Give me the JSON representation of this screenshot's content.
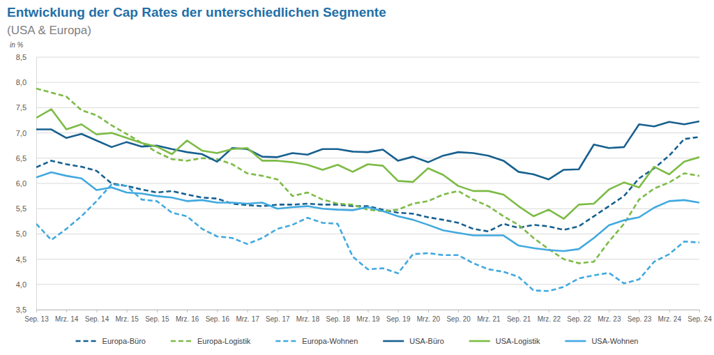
{
  "chart_data": {
    "type": "line",
    "title": "Entwicklung der Cap Rates der unterschiedlichen Segmente",
    "subtitle": "(USA & Europa)",
    "y_label": "in %",
    "categories": [
      "Sep. 13",
      null,
      "Mrz. 14",
      null,
      "Sep. 14",
      null,
      "Mrz. 15",
      null,
      "Sep. 15",
      null,
      "Mrz. 16",
      null,
      "Sep. 16",
      null,
      "Mrz. 17",
      null,
      "Sep. 17",
      null,
      "Mrz. 18",
      null,
      "Sep. 18",
      null,
      "Mrz. 19",
      null,
      "Sep. 19",
      null,
      "Mrz. 20",
      null,
      "Sep. 20",
      null,
      "Mrz. 21",
      null,
      "Sep. 21",
      null,
      "Mrz. 22",
      null,
      "Sep. 22",
      null,
      "Mrz. 23",
      null,
      "Sep. 23",
      null,
      "Mrz. 24",
      null,
      "Sep. 24"
    ],
    "ylim": [
      3.5,
      8.5
    ],
    "yticks": [
      {
        "value": 3.5,
        "label": "3,5"
      },
      {
        "value": 4,
        "label": "4,0"
      },
      {
        "value": 4.5,
        "label": "4,5"
      },
      {
        "value": 5,
        "label": "5,0"
      },
      {
        "value": 5.5,
        "label": "5,5"
      },
      {
        "value": 6,
        "label": "6,0"
      },
      {
        "value": 6.5,
        "label": "6,5"
      },
      {
        "value": 7,
        "label": "7,0"
      },
      {
        "value": 7.5,
        "label": "7,5"
      },
      {
        "value": 8,
        "label": "8,0"
      },
      {
        "value": 8.5,
        "label": "8,5"
      }
    ],
    "grid": true,
    "legend": "bottom",
    "series": [
      {
        "name": "Europa-Büro",
        "color": "#17608f",
        "line_style": "dashed",
        "values": [
          6.32,
          6.45,
          6.38,
          6.33,
          6.25,
          6.0,
          5.95,
          5.88,
          5.82,
          5.85,
          5.78,
          5.72,
          5.7,
          5.6,
          5.57,
          5.55,
          5.58,
          5.58,
          5.6,
          5.58,
          5.58,
          5.55,
          5.55,
          5.48,
          5.42,
          5.4,
          5.33,
          5.28,
          5.22,
          5.1,
          5.05,
          5.2,
          5.12,
          5.18,
          5.15,
          5.08,
          5.15,
          5.35,
          5.55,
          5.75,
          6.1,
          6.3,
          6.55,
          6.88,
          6.92
        ]
      },
      {
        "name": "Europa-Logistik",
        "color": "#7cbb45",
        "line_style": "dashed",
        "values": [
          7.88,
          7.8,
          7.72,
          7.45,
          7.35,
          7.15,
          6.98,
          6.8,
          6.62,
          6.48,
          6.45,
          6.5,
          6.48,
          6.38,
          6.2,
          6.15,
          6.08,
          5.75,
          5.82,
          5.68,
          5.6,
          5.58,
          5.48,
          5.45,
          5.48,
          5.6,
          5.65,
          5.78,
          5.85,
          5.68,
          5.55,
          5.35,
          5.18,
          4.92,
          4.7,
          4.5,
          4.42,
          4.45,
          4.85,
          5.2,
          5.68,
          5.9,
          6.02,
          6.2,
          6.15
        ]
      },
      {
        "name": "Europa-Wohnen",
        "color": "#41a9df",
        "line_style": "dashed",
        "values": [
          5.2,
          4.88,
          5.1,
          5.35,
          5.65,
          5.98,
          5.95,
          5.68,
          5.65,
          5.42,
          5.35,
          5.1,
          4.95,
          4.92,
          4.8,
          4.92,
          5.1,
          5.18,
          5.32,
          5.22,
          5.2,
          4.55,
          4.3,
          4.32,
          4.22,
          4.6,
          4.62,
          4.58,
          4.58,
          4.42,
          4.3,
          4.25,
          4.15,
          3.88,
          3.87,
          3.95,
          4.12,
          4.18,
          4.23,
          4.02,
          4.1,
          4.45,
          4.6,
          4.85,
          4.83
        ]
      },
      {
        "name": "USA-Büro",
        "color": "#17608f",
        "line_style": "solid",
        "values": [
          7.07,
          7.07,
          6.9,
          6.98,
          6.85,
          6.72,
          6.82,
          6.73,
          6.75,
          6.68,
          6.62,
          6.58,
          6.43,
          6.7,
          6.68,
          6.53,
          6.52,
          6.6,
          6.57,
          6.68,
          6.68,
          6.63,
          6.62,
          6.67,
          6.45,
          6.53,
          6.42,
          6.55,
          6.62,
          6.6,
          6.55,
          6.45,
          6.23,
          6.18,
          6.08,
          6.27,
          6.28,
          6.77,
          6.7,
          6.72,
          7.17,
          7.13,
          7.22,
          7.17,
          7.23
        ]
      },
      {
        "name": "USA-Logistik",
        "color": "#7cbb45",
        "line_style": "solid",
        "values": [
          7.3,
          7.47,
          7.07,
          7.17,
          6.97,
          7.0,
          6.9,
          6.8,
          6.73,
          6.58,
          6.85,
          6.65,
          6.6,
          6.68,
          6.7,
          6.45,
          6.45,
          6.42,
          6.37,
          6.27,
          6.37,
          6.23,
          6.38,
          6.35,
          6.05,
          6.03,
          6.3,
          6.17,
          5.95,
          5.85,
          5.85,
          5.78,
          5.55,
          5.35,
          5.48,
          5.3,
          5.58,
          5.6,
          5.88,
          6.02,
          5.92,
          6.33,
          6.18,
          6.43,
          6.52
        ]
      },
      {
        "name": "USA-Wohnen",
        "color": "#41a9df",
        "line_style": "solid",
        "values": [
          6.12,
          6.22,
          6.15,
          6.1,
          5.87,
          5.92,
          5.82,
          5.8,
          5.75,
          5.72,
          5.65,
          5.67,
          5.62,
          5.62,
          5.6,
          5.62,
          5.5,
          5.53,
          5.55,
          5.5,
          5.48,
          5.47,
          5.53,
          5.45,
          5.35,
          5.28,
          5.18,
          5.07,
          5.02,
          4.97,
          4.97,
          4.97,
          4.77,
          4.72,
          4.68,
          4.66,
          4.7,
          4.92,
          5.17,
          5.27,
          5.33,
          5.52,
          5.65,
          5.67,
          5.62
        ]
      }
    ]
  }
}
